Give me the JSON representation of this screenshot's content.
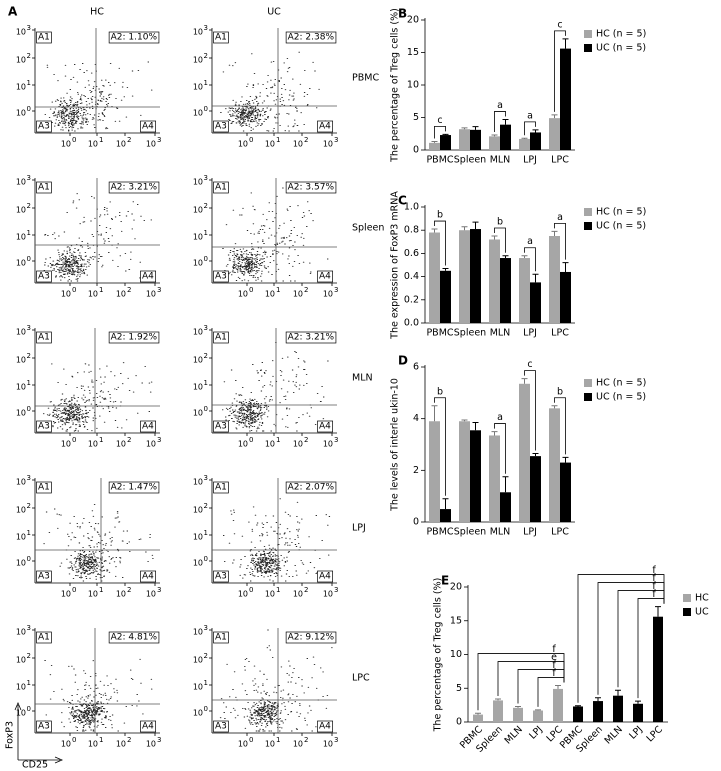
{
  "panel_a": {
    "letter": "A",
    "columns": [
      "HC",
      "UC"
    ],
    "rows": [
      "PBMC",
      "Spleen",
      "MLN",
      "LPJ",
      "LPC"
    ],
    "gates": [
      [
        "A2: 1.10%",
        "A2: 2.38%"
      ],
      [
        "A2: 3.21%",
        "A2: 3.57%"
      ],
      [
        "A2: 1.92%",
        "A2: 3.21%"
      ],
      [
        "A2: 1.47%",
        "A2: 2.07%"
      ],
      [
        "A2: 4.81%",
        "A2: 9.12%"
      ]
    ],
    "quadrants": [
      "A1",
      "A3",
      "A4"
    ],
    "tick_base": "10",
    "tick_exponents": [
      "0",
      "1",
      "2",
      "3"
    ],
    "ylabel": "FoxP3",
    "xlabel": "CD25"
  },
  "chart_data": [
    {
      "panel": "B",
      "type": "bar",
      "ylabel": "The percentage of Treg cells (%)",
      "categories": [
        "PBMC",
        "Spleen",
        "MLN",
        "LPJ",
        "LPC"
      ],
      "series": [
        {
          "name": "HC (n = 5)",
          "color": "#a6a6a6",
          "values": [
            1.1,
            3.2,
            2.1,
            1.7,
            4.9
          ],
          "errors": [
            0.2,
            0.2,
            0.2,
            0.1,
            0.5
          ]
        },
        {
          "name": "UC (n = 5)",
          "color": "#000000",
          "values": [
            2.3,
            3.1,
            3.9,
            2.7,
            15.6
          ],
          "errors": [
            0.1,
            0.5,
            0.8,
            0.4,
            1.5
          ]
        }
      ],
      "significance": [
        "c",
        null,
        "a",
        "a",
        "c"
      ],
      "ylim": [
        0,
        20
      ],
      "yticks": [
        0,
        5,
        10,
        15,
        20
      ],
      "legend": "top-right"
    },
    {
      "panel": "C",
      "type": "bar",
      "ylabel": "The expression of FoxP3 mRNA",
      "categories": [
        "PBMC",
        "Spleen",
        "MLN",
        "LPJ",
        "LPC"
      ],
      "series": [
        {
          "name": "HC (n = 5)",
          "color": "#a6a6a6",
          "values": [
            0.78,
            0.8,
            0.72,
            0.56,
            0.75
          ],
          "errors": [
            0.03,
            0.03,
            0.03,
            0.02,
            0.04
          ]
        },
        {
          "name": "UC (n = 5)",
          "color": "#000000",
          "values": [
            0.45,
            0.81,
            0.56,
            0.35,
            0.44
          ],
          "errors": [
            0.02,
            0.06,
            0.02,
            0.07,
            0.08
          ]
        }
      ],
      "significance": [
        "b",
        null,
        "b",
        "a",
        "a"
      ],
      "ylim": [
        0,
        1
      ],
      "yticks": [
        {
          "value": 0,
          "label": "0.0"
        },
        0.2,
        0.4,
        0.6,
        0.8,
        {
          "value": 1,
          "label": "1.0"
        }
      ],
      "legend": "top-right"
    },
    {
      "panel": "D",
      "type": "bar",
      "ylabel": "The levels of interle ukin-10",
      "categories": [
        "PBMC",
        "Spleen",
        "MLN",
        "LPJ",
        "LPC"
      ],
      "series": [
        {
          "name": "HC (n = 5)",
          "color": "#a6a6a6",
          "values": [
            3.9,
            3.9,
            3.35,
            5.35,
            4.4
          ],
          "errors": [
            0.6,
            0.05,
            0.15,
            0.2,
            0.1
          ]
        },
        {
          "name": "UC (n = 5)",
          "color": "#000000",
          "values": [
            0.5,
            3.55,
            1.15,
            2.55,
            2.3
          ],
          "errors": [
            0.4,
            0.3,
            0.6,
            0.1,
            0.2
          ]
        }
      ],
      "significance": [
        "b",
        null,
        "a",
        "c",
        "b"
      ],
      "ylim": [
        0,
        6
      ],
      "yticks": [
        0,
        2,
        4,
        6
      ],
      "legend": "top-right"
    },
    {
      "panel": "E",
      "type": "bar",
      "ylabel": "The percentage of Treg cells (%)",
      "categories": [
        "PBMC",
        "Spleen",
        "MLN",
        "LPJ",
        "LPC",
        "PBMC",
        "Spleen",
        "MLN",
        "LPJ",
        "LPC"
      ],
      "series": [
        {
          "name": "HC",
          "color": "#a6a6a6",
          "values": [
            1.1,
            3.2,
            2.1,
            1.7,
            4.9,
            null,
            null,
            null,
            null,
            null
          ],
          "errors": [
            0.2,
            0.2,
            0.2,
            0.1,
            0.5,
            null,
            null,
            null,
            null,
            null
          ],
          "significance": [
            "f",
            "e",
            "f",
            "f"
          ]
        },
        {
          "name": "UC",
          "color": "#000000",
          "values": [
            null,
            null,
            null,
            null,
            null,
            2.3,
            3.1,
            3.9,
            2.7,
            15.6
          ],
          "errors": [
            null,
            null,
            null,
            null,
            null,
            0.1,
            0.5,
            0.8,
            0.4,
            1.5
          ],
          "significance": [
            "f",
            "f",
            "f",
            "f"
          ]
        }
      ],
      "ylim": [
        0,
        20
      ],
      "yticks": [
        0,
        5,
        10,
        15,
        20
      ],
      "legend": "top-right"
    }
  ]
}
